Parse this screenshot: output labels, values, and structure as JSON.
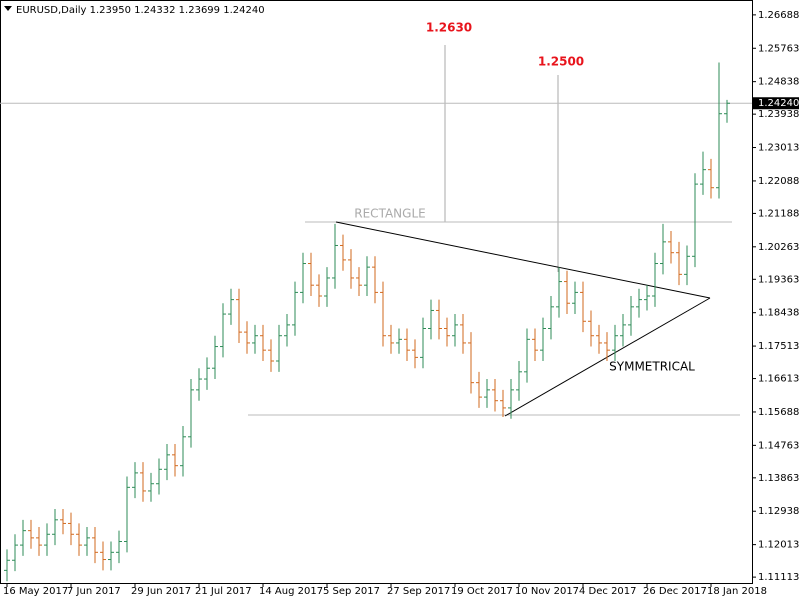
{
  "chart_data": {
    "type": "ohlc",
    "title": "EURUSD,Daily  1.23950 1.24332 1.23699 1.24240",
    "categories": [
      "16 May 2017",
      null,
      null,
      null,
      null,
      null,
      null,
      null,
      "7 Jun 2017",
      null,
      null,
      null,
      null,
      null,
      null,
      null,
      "29 Jun 2017",
      null,
      null,
      null,
      null,
      null,
      null,
      null,
      "21 Jul 2017",
      null,
      null,
      null,
      null,
      null,
      null,
      null,
      "14 Aug 2017",
      null,
      null,
      null,
      null,
      null,
      null,
      null,
      "5 Sep 2017",
      null,
      null,
      null,
      null,
      null,
      null,
      null,
      "27 Sep 2017",
      null,
      null,
      null,
      null,
      null,
      null,
      null,
      "19 Oct 2017",
      null,
      null,
      null,
      null,
      null,
      null,
      null,
      "10 Nov 2017",
      null,
      null,
      null,
      null,
      null,
      null,
      null,
      "4 Dec 2017",
      null,
      null,
      null,
      null,
      null,
      null,
      null,
      "26 Dec 2017",
      null,
      null,
      null,
      null,
      null,
      null,
      null,
      "18 Jan 2018",
      null,
      null
    ],
    "open": [
      1.113,
      1.1158,
      1.12,
      1.124,
      1.122,
      1.12,
      1.123,
      1.127,
      1.126,
      1.123,
      1.12,
      1.122,
      1.118,
      1.116,
      1.118,
      1.121,
      1.136,
      1.14,
      1.135,
      1.137,
      1.141,
      1.145,
      1.142,
      1.15,
      1.163,
      1.166,
      1.169,
      1.175,
      1.184,
      1.188,
      1.179,
      1.176,
      1.178,
      1.174,
      1.171,
      1.178,
      1.181,
      1.19,
      1.198,
      1.192,
      1.189,
      1.194,
      1.203,
      1.199,
      1.194,
      1.192,
      1.197,
      1.19,
      1.178,
      1.176,
      1.177,
      1.174,
      1.172,
      1.18,
      1.185,
      1.18,
      1.178,
      1.181,
      1.176,
      1.165,
      1.161,
      1.163,
      1.16,
      1.158,
      1.163,
      1.168,
      1.177,
      1.174,
      1.18,
      1.186,
      1.193,
      1.187,
      1.19,
      1.182,
      1.178,
      1.176,
      1.174,
      1.178,
      1.181,
      1.186,
      1.188,
      1.189,
      1.198,
      1.204,
      1.201,
      1.195,
      1.2,
      1.22,
      1.224,
      1.219,
      1.2395
    ],
    "high": [
      1.1188,
      1.123,
      1.127,
      1.127,
      1.125,
      1.126,
      1.13,
      1.13,
      1.129,
      1.126,
      1.125,
      1.125,
      1.121,
      1.121,
      1.124,
      1.139,
      1.143,
      1.143,
      1.14,
      1.144,
      1.148,
      1.148,
      1.153,
      1.166,
      1.169,
      1.172,
      1.178,
      1.187,
      1.191,
      1.191,
      1.182,
      1.181,
      1.181,
      1.177,
      1.181,
      1.184,
      1.193,
      1.201,
      1.201,
      1.195,
      1.197,
      1.209,
      1.206,
      1.202,
      1.197,
      1.2,
      1.2,
      1.193,
      1.181,
      1.18,
      1.18,
      1.177,
      1.183,
      1.188,
      1.188,
      1.183,
      1.184,
      1.184,
      1.179,
      1.168,
      1.166,
      1.166,
      1.163,
      1.166,
      1.171,
      1.18,
      1.18,
      1.183,
      1.189,
      1.197,
      1.196,
      1.193,
      1.193,
      1.185,
      1.181,
      1.179,
      1.181,
      1.184,
      1.189,
      1.191,
      1.192,
      1.201,
      1.209,
      1.207,
      1.204,
      1.203,
      1.223,
      1.229,
      1.227,
      1.2537,
      1.24332
    ],
    "low": [
      1.11,
      1.1128,
      1.117,
      1.119,
      1.117,
      1.117,
      1.12,
      1.123,
      1.12,
      1.117,
      1.117,
      1.115,
      1.113,
      1.113,
      1.115,
      1.118,
      1.133,
      1.132,
      1.132,
      1.134,
      1.138,
      1.139,
      1.139,
      1.147,
      1.16,
      1.163,
      1.166,
      1.172,
      1.181,
      1.176,
      1.173,
      1.173,
      1.171,
      1.168,
      1.168,
      1.175,
      1.178,
      1.187,
      1.189,
      1.186,
      1.186,
      1.191,
      1.196,
      1.191,
      1.189,
      1.189,
      1.187,
      1.175,
      1.173,
      1.173,
      1.171,
      1.169,
      1.169,
      1.177,
      1.177,
      1.175,
      1.175,
      1.173,
      1.162,
      1.158,
      1.158,
      1.157,
      1.1555,
      1.155,
      1.16,
      1.165,
      1.171,
      1.171,
      1.177,
      1.183,
      1.184,
      1.184,
      1.179,
      1.175,
      1.173,
      1.171,
      1.171,
      1.175,
      1.178,
      1.183,
      1.185,
      1.186,
      1.195,
      1.198,
      1.192,
      1.192,
      1.197,
      1.217,
      1.216,
      1.216,
      1.23699
    ],
    "close": [
      1.1158,
      1.12,
      1.124,
      1.122,
      1.12,
      1.123,
      1.127,
      1.126,
      1.123,
      1.12,
      1.122,
      1.118,
      1.116,
      1.118,
      1.121,
      1.136,
      1.14,
      1.135,
      1.137,
      1.141,
      1.145,
      1.142,
      1.15,
      1.163,
      1.166,
      1.169,
      1.175,
      1.184,
      1.188,
      1.179,
      1.176,
      1.178,
      1.174,
      1.171,
      1.178,
      1.181,
      1.19,
      1.198,
      1.192,
      1.189,
      1.194,
      1.203,
      1.199,
      1.194,
      1.192,
      1.197,
      1.19,
      1.178,
      1.176,
      1.177,
      1.174,
      1.172,
      1.18,
      1.185,
      1.18,
      1.178,
      1.181,
      1.176,
      1.165,
      1.161,
      1.163,
      1.16,
      1.158,
      1.163,
      1.168,
      1.177,
      1.174,
      1.18,
      1.186,
      1.193,
      1.187,
      1.19,
      1.182,
      1.178,
      1.176,
      1.174,
      1.178,
      1.181,
      1.186,
      1.188,
      1.189,
      1.198,
      1.204,
      1.201,
      1.195,
      1.2,
      1.22,
      1.224,
      1.219,
      1.2395,
      1.2424
    ],
    "up_color": "#2e8b57",
    "down_color": "#d2691e",
    "ylim": [
      1.1095,
      1.271
    ],
    "yticks": [
      1.26688,
      1.25763,
      1.24838,
      1.23938,
      1.23013,
      1.22088,
      1.21188,
      1.20263,
      1.19363,
      1.18438,
      1.17513,
      1.16613,
      1.15688,
      1.14763,
      1.13863,
      1.12938,
      1.12013,
      1.11113
    ],
    "last_price": {
      "value": 1.2424,
      "label": "1.24240"
    },
    "annotations": [
      "1.2630",
      "1.2500",
      "RECTANGLE",
      "SYMMETRICAL"
    ]
  }
}
